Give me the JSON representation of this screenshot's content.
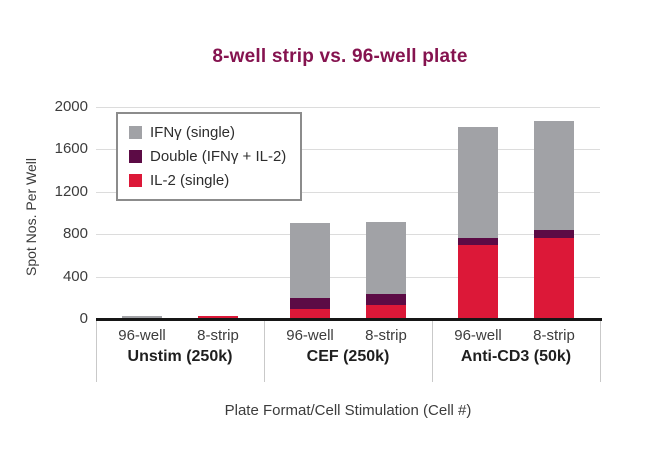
{
  "header": {
    "title": "8-well strip vs. 96-well plate"
  },
  "colors": {
    "title": "#85134f",
    "axis": "#161616",
    "grid": "#dcdcdc",
    "divider": "#c9c9c9",
    "text": "#3c3c3c",
    "legend_border": "#8c8c8c",
    "ifng_gray": "#a1a2a6",
    "double_purple": "#5c0b45",
    "il2_red": "#dc1838"
  },
  "chart_data": {
    "type": "bar",
    "stacked": true,
    "title": "8-well strip vs. 96-well plate",
    "xlabel": "Plate Format/Cell Stimulation (Cell #)",
    "ylabel": "Spot Nos. Per Well",
    "ylim": [
      0,
      2000
    ],
    "yticks": [
      0,
      400,
      800,
      1200,
      1600,
      2000
    ],
    "grid": "horizontal",
    "legend_position": "upper-left",
    "groups": [
      {
        "label": "Unstim (250k)",
        "bar_labels": [
          "96-well",
          "8-strip"
        ]
      },
      {
        "label": "CEF (250k)",
        "bar_labels": [
          "96-well",
          "8-strip"
        ]
      },
      {
        "label": "Anti-CD3 (50k)",
        "bar_labels": [
          "96-well",
          "8-strip"
        ]
      }
    ],
    "series": [
      {
        "key": "il2",
        "name": "IL-2 (single)",
        "color": "#dc1838",
        "values": [
          0,
          30,
          95,
          130,
          700,
          760
        ]
      },
      {
        "key": "double",
        "name": "Double (IFNγ + IL-2)",
        "color": "#5c0b45",
        "values": [
          0,
          0,
          100,
          105,
          60,
          80
        ]
      },
      {
        "key": "ifng",
        "name": "IFNγ (single)",
        "color": "#a1a2a6",
        "values": [
          30,
          0,
          715,
          685,
          1050,
          1030
        ]
      }
    ],
    "bar_totals": [
      30,
      30,
      910,
      920,
      1810,
      1870
    ],
    "legend_order_top_to_bottom": [
      "IFNγ (single)",
      "Double (IFNγ + IL-2)",
      "IL-2 (single)"
    ]
  }
}
